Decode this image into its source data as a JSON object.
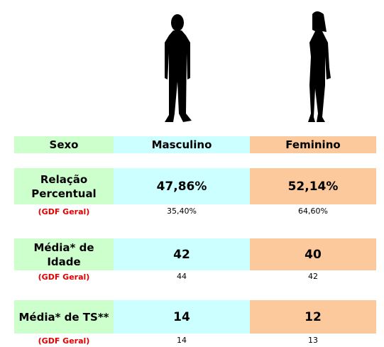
{
  "table": {
    "header": [
      "Sexo",
      "Masculino",
      "Feminino"
    ],
    "rows": [
      {
        "label": "Relação Percentual",
        "values": [
          "47,86%",
          "52,14%"
        ],
        "reference": {
          "label": "(GDF Geral)",
          "values": [
            "35,40%",
            "64,60%"
          ]
        }
      },
      {
        "label": "Média* de Idade",
        "values": [
          "42",
          "40"
        ],
        "reference": {
          "label": "(GDF Geral)",
          "values": [
            "44",
            "42"
          ]
        }
      },
      {
        "label": "Média* de TS**",
        "values": [
          "14",
          "12"
        ],
        "reference": {
          "label": "(GDF Geral)",
          "values": [
            "14",
            "13"
          ]
        }
      }
    ]
  }
}
